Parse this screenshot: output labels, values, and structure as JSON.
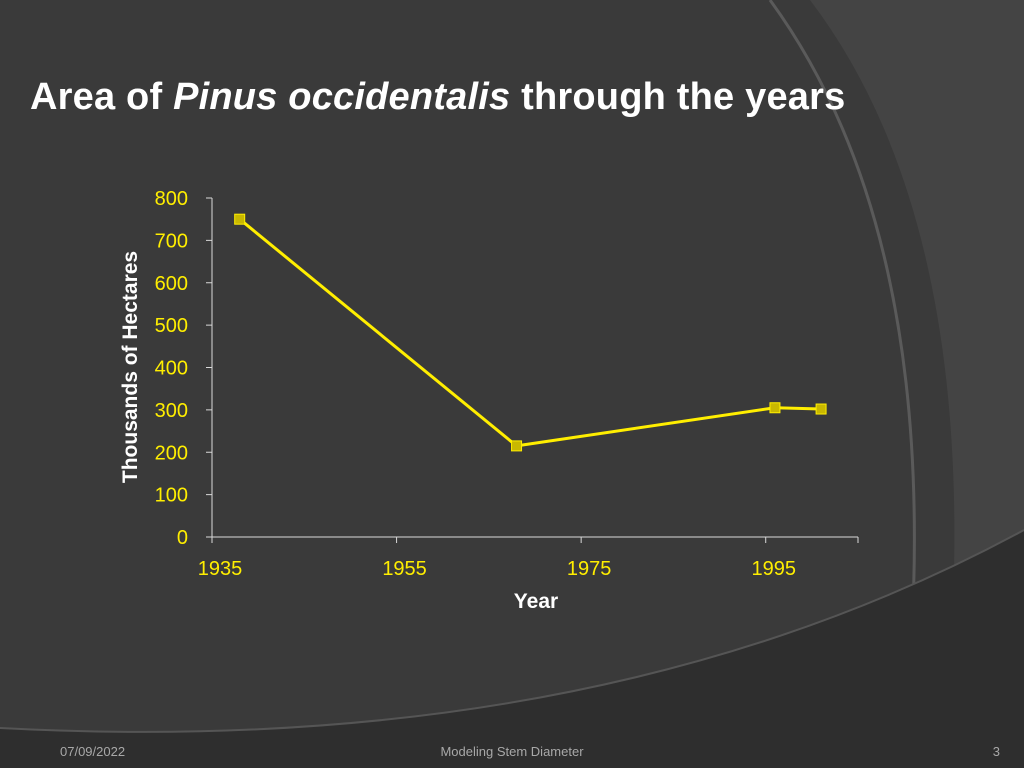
{
  "slide": {
    "title_part1": "Area of ",
    "title_italic": "Pinus occidentalis",
    "title_part2": " through the years",
    "footer_date": "07/09/2022",
    "footer_center": "Modeling Stem Diameter",
    "footer_page": "3"
  },
  "colors": {
    "background": "#3a3a3a",
    "accent": "#ffee00",
    "marker_fill": "#c9b800",
    "axis": "#d9d9d9",
    "text": "#ffffff"
  },
  "chart_data": {
    "type": "scatter",
    "mode": "lines+markers",
    "xlabel": "Year",
    "ylabel": "Thousands of Hectares",
    "xlim": [
      1935,
      2005
    ],
    "ylim": [
      0,
      800
    ],
    "xticks": [
      1935,
      1955,
      1975,
      1995
    ],
    "yticks": [
      0,
      100,
      200,
      300,
      400,
      500,
      600,
      700,
      800
    ],
    "grid": false,
    "series": [
      {
        "x": [
          1938,
          1968,
          1996,
          2001
        ],
        "y": [
          750,
          215,
          305,
          302
        ]
      }
    ]
  }
}
